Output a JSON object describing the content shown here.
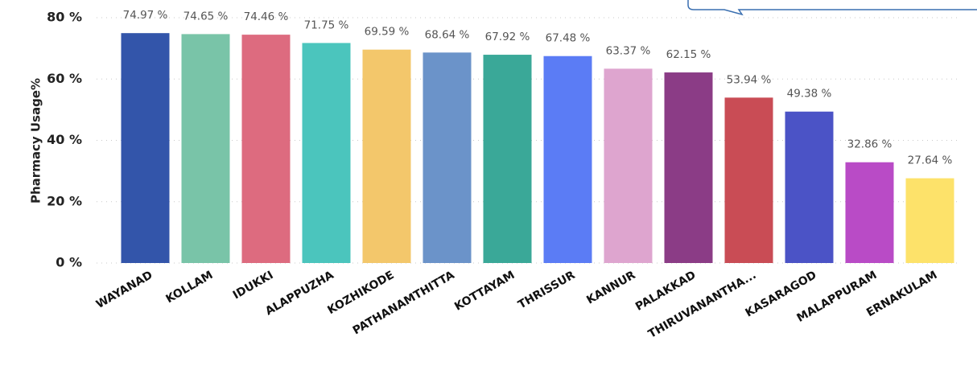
{
  "chart_data": {
    "type": "bar",
    "y_label": "Pharmacy Usage%",
    "categories": [
      "WAYANAD",
      "KOLLAM",
      "IDUKKI",
      "ALAPPUZHA",
      "KOZHIKODE",
      "PATHANAMTHITTA",
      "KOTTAYAM",
      "THRISSUR",
      "KANNUR",
      "PALAKKAD",
      "THIRUVANANTHA...",
      "KASARAGOD",
      "MALAPPURAM",
      "ERNAKULAM"
    ],
    "values": [
      74.97,
      74.65,
      74.46,
      71.75,
      69.59,
      68.64,
      67.92,
      67.48,
      63.37,
      62.15,
      53.94,
      49.38,
      32.86,
      27.64
    ],
    "value_labels": [
      "74.97 %",
      "74.65 %",
      "74.46 %",
      "71.75 %",
      "69.59 %",
      "68.64 %",
      "67.92 %",
      "67.48 %",
      "63.37 %",
      "62.15 %",
      "53.94 %",
      "49.38 %",
      "32.86 %",
      "27.64 %"
    ],
    "colors": [
      "#3355aa",
      "#79c4a8",
      "#dd6b7f",
      "#4bc5bd",
      "#f3c76b",
      "#6b93c9",
      "#3aa898",
      "#5b7cf5",
      "#dea5cf",
      "#8b3c86",
      "#c94c55",
      "#4b53c6",
      "#b94bc6",
      "#fde26a"
    ],
    "ylim": [
      0,
      80
    ],
    "yticks": [
      {
        "value": 0,
        "label": "0 %"
      },
      {
        "value": 20,
        "label": "20 %"
      },
      {
        "value": 40,
        "label": "40 %"
      },
      {
        "value": 60,
        "label": "60 %"
      },
      {
        "value": 80,
        "label": "80 %"
      }
    ],
    "grid": true
  }
}
